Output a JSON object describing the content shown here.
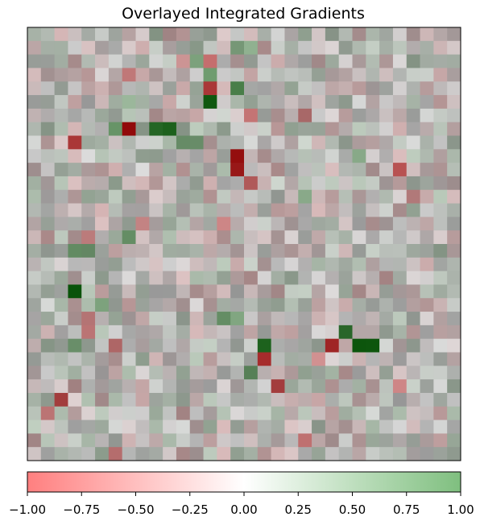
{
  "chart_data": {
    "type": "heatmap",
    "title": "Overlayed Integrated Gradients",
    "grid_rows": 32,
    "grid_cols": 32,
    "axes_visible": false,
    "colorbar": {
      "orientation": "horizontal",
      "placement": "bottom",
      "min": -1.0,
      "max": 1.0,
      "colors": {
        "negative": "#ff7f7f",
        "zero": "#ffffff",
        "positive": "#7fbf7f"
      },
      "ticks": [
        -1.0,
        -0.75,
        -0.5,
        -0.25,
        0.0,
        0.25,
        0.5,
        0.75,
        1.0
      ],
      "tick_labels": [
        "−1.00",
        "−0.75",
        "−0.50",
        "−0.25",
        "0.00",
        "0.25",
        "0.50",
        "0.75",
        "1.00"
      ]
    },
    "strong_attributions": [
      {
        "row": 7,
        "col": 7,
        "value": -0.95
      },
      {
        "row": 7,
        "col": 10,
        "value": 0.9
      },
      {
        "row": 7,
        "col": 9,
        "value": 0.85
      },
      {
        "row": 7,
        "col": 6,
        "value": 0.6
      },
      {
        "row": 8,
        "col": 3,
        "value": -0.8
      },
      {
        "row": 9,
        "col": 15,
        "value": -0.95
      },
      {
        "row": 10,
        "col": 15,
        "value": -0.9
      },
      {
        "row": 4,
        "col": 13,
        "value": -0.8
      },
      {
        "row": 4,
        "col": 15,
        "value": 0.7
      },
      {
        "row": 2,
        "col": 13,
        "value": -0.6
      },
      {
        "row": 3,
        "col": 13,
        "value": 0.6
      },
      {
        "row": 5,
        "col": 13,
        "value": 0.95
      },
      {
        "row": 19,
        "col": 3,
        "value": 0.95
      },
      {
        "row": 23,
        "col": 24,
        "value": 0.95
      },
      {
        "row": 23,
        "col": 25,
        "value": 0.95
      },
      {
        "row": 23,
        "col": 22,
        "value": -0.85
      },
      {
        "row": 22,
        "col": 23,
        "value": 0.8
      },
      {
        "row": 24,
        "col": 17,
        "value": -0.85
      },
      {
        "row": 23,
        "col": 17,
        "value": 0.9
      },
      {
        "row": 11,
        "col": 16,
        "value": -0.6
      },
      {
        "row": 6,
        "col": 16,
        "value": -0.55
      },
      {
        "row": 10,
        "col": 27,
        "value": -0.7
      },
      {
        "row": 26,
        "col": 18,
        "value": -0.7
      },
      {
        "row": 27,
        "col": 2,
        "value": -0.7
      },
      {
        "row": 15,
        "col": 7,
        "value": 0.55
      },
      {
        "row": 16,
        "col": 3,
        "value": 0.55
      },
      {
        "row": 16,
        "col": 4,
        "value": 0.5
      },
      {
        "row": 3,
        "col": 7,
        "value": -0.5
      },
      {
        "row": 6,
        "col": 20,
        "value": -0.45
      },
      {
        "row": 12,
        "col": 20,
        "value": 0.45
      },
      {
        "row": 21,
        "col": 14,
        "value": 0.55
      },
      {
        "row": 21,
        "col": 15,
        "value": 0.5
      },
      {
        "row": 22,
        "col": 4,
        "value": -0.5
      },
      {
        "row": 23,
        "col": 6,
        "value": -0.5
      },
      {
        "row": 25,
        "col": 16,
        "value": 0.55
      },
      {
        "row": 2,
        "col": 11,
        "value": -0.4
      },
      {
        "row": 2,
        "col": 12,
        "value": 0.5
      },
      {
        "row": 1,
        "col": 15,
        "value": 0.45
      },
      {
        "row": 1,
        "col": 16,
        "value": 0.45
      },
      {
        "row": 5,
        "col": 7,
        "value": 0.4
      },
      {
        "row": 8,
        "col": 11,
        "value": 0.5
      },
      {
        "row": 8,
        "col": 12,
        "value": 0.5
      },
      {
        "row": 20,
        "col": 5,
        "value": 0.5
      },
      {
        "row": 21,
        "col": 4,
        "value": -0.45
      },
      {
        "row": 23,
        "col": 3,
        "value": 0.5
      },
      {
        "row": 24,
        "col": 21,
        "value": -0.45
      },
      {
        "row": 28,
        "col": 1,
        "value": -0.5
      },
      {
        "row": 30,
        "col": 20,
        "value": -0.55
      },
      {
        "row": 31,
        "col": 6,
        "value": -0.5
      },
      {
        "row": 9,
        "col": 24,
        "value": 0.45
      },
      {
        "row": 12,
        "col": 28,
        "value": -0.4
      },
      {
        "row": 14,
        "col": 8,
        "value": -0.45
      },
      {
        "row": 14,
        "col": 14,
        "value": -0.5
      },
      {
        "row": 15,
        "col": 4,
        "value": -0.45
      },
      {
        "row": 26,
        "col": 27,
        "value": -0.5
      }
    ]
  }
}
